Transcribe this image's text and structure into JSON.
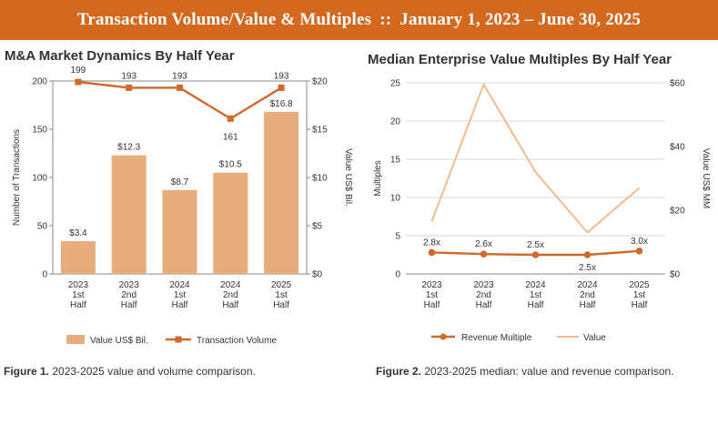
{
  "banner": {
    "left": "Transaction Volume/Value & Multiples",
    "separator": "::",
    "right": "January 1, 2023 – June 30, 2025"
  },
  "colors": {
    "accent": "#d2691e",
    "bar": "#e8ad7c",
    "line": "#d0692a",
    "value_line": "#f0bc8f"
  },
  "chart_data": [
    {
      "type": "bar",
      "title": "M&A Market Dynamics By Half Year",
      "categories": [
        [
          "2023",
          "1st",
          "Half"
        ],
        [
          "2023",
          "2nd",
          "Half"
        ],
        [
          "2024",
          "1st",
          "Half"
        ],
        [
          "2024",
          "2nd",
          "Half"
        ],
        [
          "2025",
          "1st",
          "Half"
        ]
      ],
      "ylabel": "Number of Transactions",
      "y2label": "Value US$ Bil.",
      "ylim": [
        0,
        200
      ],
      "yticks": [
        "0",
        "50",
        "100",
        "150",
        "200"
      ],
      "y2lim": [
        0,
        20
      ],
      "y2ticks": [
        "$0",
        "$5",
        "$10",
        "$15",
        "$20"
      ],
      "grid": false,
      "legend_position": "bottom",
      "series": [
        {
          "name": "Value US$ Bil.",
          "type": "bar",
          "axis": "right",
          "values": [
            3.4,
            12.3,
            8.7,
            10.5,
            16.8
          ],
          "labels": [
            "$3.4",
            "$12.3",
            "$8.7",
            "$10.5",
            "$16.8"
          ]
        },
        {
          "name": "Transaction Volume",
          "type": "line",
          "axis": "left",
          "marker": "square",
          "values": [
            199,
            193,
            193,
            161,
            193
          ],
          "labels": [
            "199",
            "193",
            "193",
            "161",
            "193"
          ]
        }
      ],
      "caption": {
        "label": "Figure 1.",
        "text": "2023-2025 value and volume comparison."
      }
    },
    {
      "type": "line",
      "title": "Median Enterprise Value Multiples By Half Year",
      "categories": [
        [
          "2023",
          "1st",
          "Half"
        ],
        [
          "2023",
          "2nd",
          "Half"
        ],
        [
          "2024",
          "1st",
          "Half"
        ],
        [
          "2024",
          "2nd",
          "Half"
        ],
        [
          "2025",
          "1st",
          "Half"
        ]
      ],
      "ylabel": "Multiples",
      "y2label": "Value US$ MM",
      "ylim": [
        0,
        25
      ],
      "yticks": [
        "0",
        "5",
        "10",
        "15",
        "20",
        "25"
      ],
      "y2lim": [
        0,
        60
      ],
      "y2ticks": [
        "$0",
        "$20",
        "$40",
        "$60"
      ],
      "grid": true,
      "legend_position": "bottom",
      "series": [
        {
          "name": "Revenue Multiple",
          "type": "line",
          "axis": "left",
          "marker": "circle",
          "values": [
            2.8,
            2.6,
            2.5,
            2.5,
            3.0
          ],
          "labels": [
            "2.8x",
            "2.6x",
            "2.5x",
            "2.5x",
            "3.0x"
          ]
        },
        {
          "name": "Value",
          "type": "line",
          "axis": "right",
          "values": [
            16.5,
            59.5,
            32,
            13,
            27
          ]
        }
      ],
      "caption": {
        "label": "Figure 2.",
        "text": "2023-2025 median: value and revenue comparison."
      }
    }
  ]
}
